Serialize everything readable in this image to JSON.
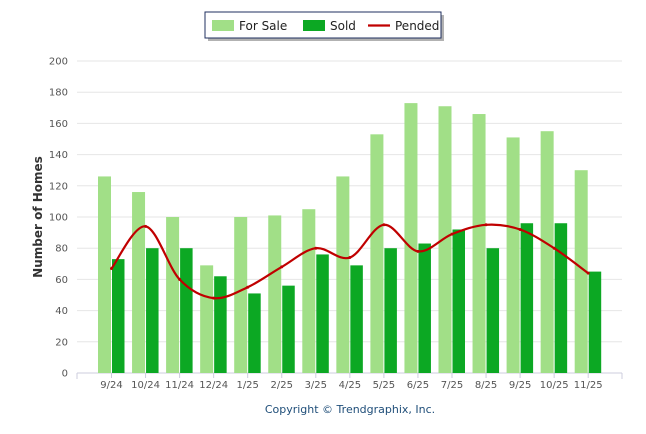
{
  "chart_data": {
    "type": "bar",
    "title": "",
    "xlabel": "",
    "ylabel": "Number of Homes",
    "ylim": [
      0,
      200
    ],
    "yticks": [
      0,
      20,
      40,
      60,
      80,
      100,
      120,
      140,
      160,
      180,
      200
    ],
    "grid": true,
    "legend_placement": "top-center",
    "categories": [
      "9/24",
      "10/24",
      "11/24",
      "12/24",
      "1/25",
      "2/25",
      "3/25",
      "4/25",
      "5/25",
      "6/25",
      "7/25",
      "8/25",
      "9/25",
      "10/25",
      "11/25"
    ],
    "series": [
      {
        "name": "For Sale",
        "type": "bar",
        "color": "#a1df87",
        "values": [
          126,
          116,
          100,
          69,
          100,
          101,
          105,
          126,
          153,
          173,
          171,
          166,
          151,
          155,
          130
        ]
      },
      {
        "name": "Sold",
        "type": "bar",
        "color": "#0ca823",
        "values": [
          73,
          80,
          80,
          62,
          51,
          56,
          76,
          69,
          80,
          83,
          92,
          80,
          96,
          96,
          65
        ]
      },
      {
        "name": "Pended",
        "type": "line",
        "color": "#c00000",
        "values": [
          67,
          94,
          60,
          48,
          55,
          68,
          80,
          74,
          95,
          78,
          89,
          95,
          92,
          80,
          64
        ]
      }
    ],
    "footer": "Copyright © Trendgraphix, Inc."
  }
}
